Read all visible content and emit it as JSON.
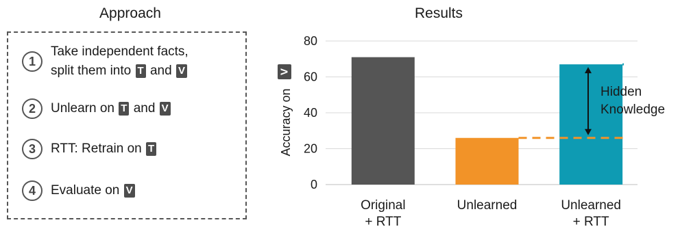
{
  "approach": {
    "title": "Approach",
    "steps": [
      {
        "num": "1",
        "line1": "Take independent facts,",
        "line2_prefix": "split them into",
        "tag1": "T",
        "mid": "and",
        "tag2": "V"
      },
      {
        "num": "2",
        "prefix": "Unlearn on",
        "tag1": "T",
        "mid": "and",
        "tag2": "V"
      },
      {
        "num": "3",
        "prefix": "RTT: Retrain on",
        "tag1": "T"
      },
      {
        "num": "4",
        "prefix": "Evaluate on",
        "tag1": "V"
      }
    ]
  },
  "results": {
    "title": "Results"
  },
  "chart_data": {
    "type": "bar",
    "title": "Results",
    "ylabel": "Accuracy on",
    "ylabel_tag": "V",
    "ylim": [
      0,
      80
    ],
    "yticks": [
      0,
      20,
      40,
      60,
      80
    ],
    "categories": [
      {
        "line1": "Original",
        "line2": "+ RTT"
      },
      {
        "line1": "Unlearned",
        "line2": ""
      },
      {
        "line1": "Unlearned",
        "line2": "+ RTT"
      }
    ],
    "values": [
      71,
      26,
      67
    ],
    "colors": [
      "#555555",
      "#f29328",
      "#0e9bb3"
    ],
    "grid": true,
    "annotation": {
      "line1": "Hidden",
      "line2": "Knowledge",
      "from": 26,
      "to": 67
    }
  }
}
